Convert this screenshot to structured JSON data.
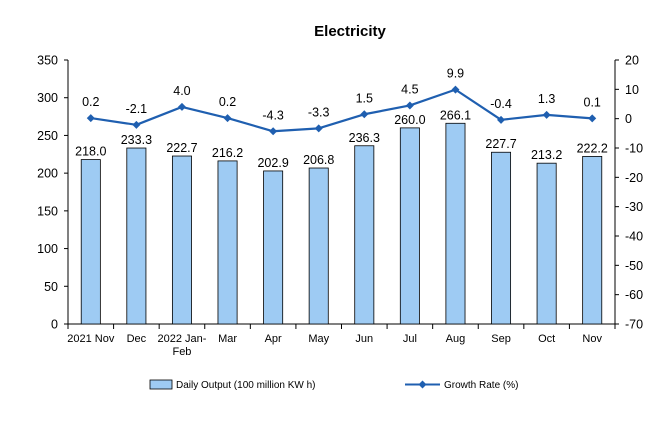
{
  "chart_data": {
    "type": "bar+line",
    "title": "Electricity",
    "categories": [
      "2021 Nov",
      "Dec",
      "2022 Jan-Feb",
      "Mar",
      "Apr",
      "May",
      "Jun",
      "Jul",
      "Aug",
      "Sep",
      "Oct",
      "Nov"
    ],
    "category_lines": [
      [
        "2021 Nov"
      ],
      [
        "Dec"
      ],
      [
        "2022 Jan-",
        "Feb"
      ],
      [
        "Mar"
      ],
      [
        "Apr"
      ],
      [
        "May"
      ],
      [
        "Jun"
      ],
      [
        "Jul"
      ],
      [
        "Aug"
      ],
      [
        "Sep"
      ],
      [
        "Oct"
      ],
      [
        "Nov"
      ]
    ],
    "series": [
      {
        "name": "Daily Output (100 million KW h)",
        "type": "bar",
        "axis": "left",
        "color": "#9ecbf3",
        "values": [
          218.0,
          233.3,
          222.7,
          216.2,
          202.9,
          206.8,
          236.3,
          260.0,
          266.1,
          227.7,
          213.2,
          222.2
        ],
        "labels": [
          "218.0",
          "233.3",
          "222.7",
          "216.2",
          "202.9",
          "206.8",
          "236.3",
          "260.0",
          "266.1",
          "227.7",
          "213.2",
          "222.2"
        ]
      },
      {
        "name": "Growth Rate (%)",
        "type": "line",
        "axis": "right",
        "color": "#1f5fb0",
        "values": [
          0.2,
          -2.1,
          4.0,
          0.2,
          -4.3,
          -3.3,
          1.5,
          4.5,
          9.9,
          -0.4,
          1.3,
          0.1
        ],
        "labels": [
          "0.2",
          "-2.1",
          "4.0",
          "0.2",
          "-4.3",
          "-3.3",
          "1.5",
          "4.5",
          "9.9",
          "-0.4",
          "1.3",
          "0.1"
        ]
      }
    ],
    "y_left": {
      "range": [
        0,
        350
      ],
      "ticks": [
        "0",
        "50",
        "100",
        "150",
        "200",
        "250",
        "300",
        "350"
      ]
    },
    "y_right": {
      "range": [
        -70,
        20
      ],
      "ticks": [
        "-70",
        "-60",
        "-50",
        "-40",
        "-30",
        "-20",
        "-10",
        "0",
        "10",
        "20"
      ]
    },
    "grid": false,
    "legend_position": "bottom"
  }
}
